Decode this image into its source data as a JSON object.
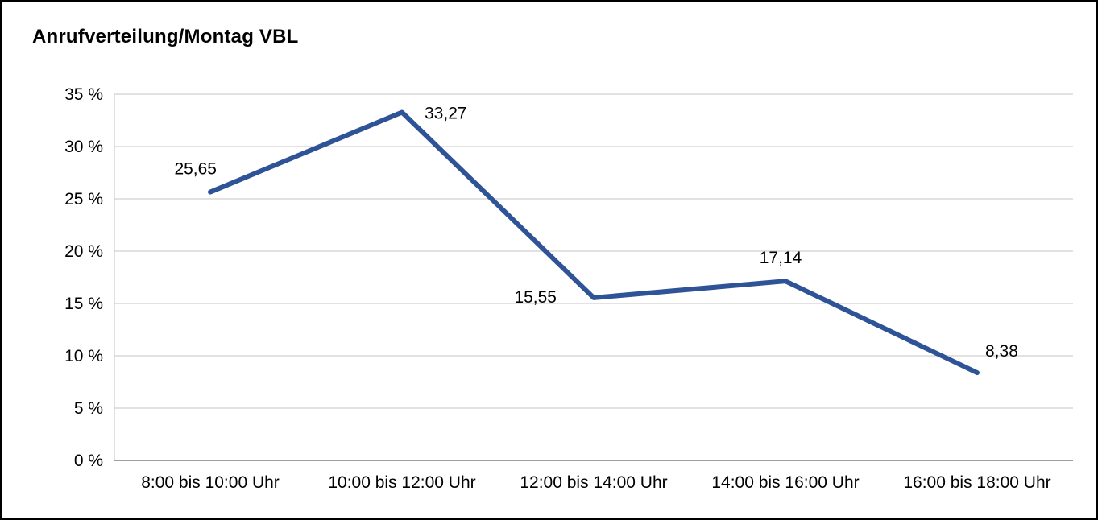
{
  "chart_data": {
    "type": "line",
    "title": "Anrufverteilung/Montag VBL",
    "categories": [
      "8:00 bis 10:00 Uhr",
      "10:00 bis 12:00 Uhr",
      "12:00 bis 14:00 Uhr",
      "14:00 bis 16:00 Uhr",
      "16:00 bis 18:00 Uhr"
    ],
    "values": [
      25.65,
      33.27,
      15.55,
      17.14,
      8.38
    ],
    "point_labels": [
      "25,65",
      "33,27",
      "15,55",
      "17,14",
      "8,38"
    ],
    "ylabel": "",
    "xlabel": "",
    "ylim": [
      0,
      35
    ],
    "ytick_step": 5,
    "ytick_suffix": " %",
    "grid": true,
    "legend_position": "none",
    "line_color": "#2f5397",
    "grid_color": "#c6c6c6",
    "axis_color": "#7f7f7f",
    "text_color": "#000000",
    "frame_color": "#000000"
  }
}
